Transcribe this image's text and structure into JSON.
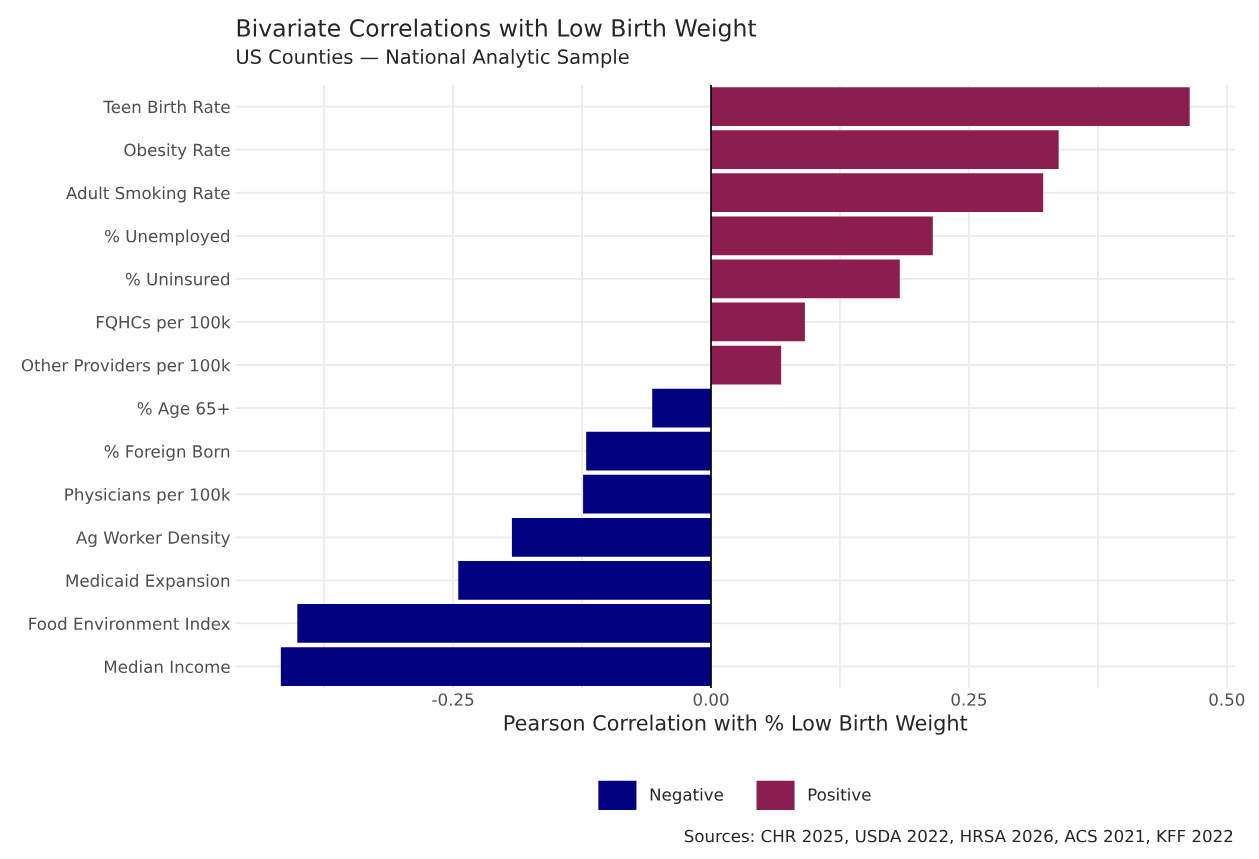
{
  "chart_data": {
    "type": "bar",
    "orientation": "horizontal",
    "title": "Bivariate Correlations with Low Birth Weight",
    "subtitle": "US Counties — National Analytic Sample",
    "xlabel": "Pearson Correlation with % Low Birth Weight",
    "categories": [
      "Teen Birth Rate",
      "Obesity Rate",
      "Adult Smoking Rate",
      "% Unemployed",
      "% Uninsured",
      "FQHCs per 100k",
      "Other Providers per 100k",
      "% Age 65+",
      "% Foreign Born",
      "Physicians per 100k",
      "Ag Worker Density",
      "Medicaid Expansion",
      "Food Environment Index",
      "Median Income"
    ],
    "series": [
      {
        "name": "Negative",
        "color": "#000080",
        "values": [
          null,
          null,
          null,
          null,
          null,
          null,
          null,
          -0.057,
          -0.121,
          -0.124,
          -0.193,
          -0.245,
          -0.401,
          -0.417
        ]
      },
      {
        "name": "Positive",
        "color": "#8b1e4f",
        "values": [
          0.464,
          0.337,
          0.322,
          0.215,
          0.183,
          0.091,
          0.068,
          null,
          null,
          null,
          null,
          null,
          null,
          null
        ]
      }
    ],
    "xlim": [
      -0.461,
      0.508
    ],
    "xticks": [
      {
        "value": -0.375,
        "label": null
      },
      {
        "value": -0.25,
        "label": "-0.25"
      },
      {
        "value": -0.125,
        "label": null
      },
      {
        "value": 0,
        "label": "0.00"
      },
      {
        "value": 0.125,
        "label": null
      },
      {
        "value": 0.25,
        "label": "0.25"
      },
      {
        "value": 0.375,
        "label": null
      },
      {
        "value": 0.5,
        "label": "0.50"
      }
    ],
    "ref_lines": [
      {
        "axis": "x",
        "value": 0,
        "color": "#000000"
      }
    ],
    "grid": true,
    "legend": "bottom",
    "annotations": [
      "Sources: CHR 2025, USDA 2022, HRSA 2026, ACS 2021, KFF 2022"
    ]
  }
}
